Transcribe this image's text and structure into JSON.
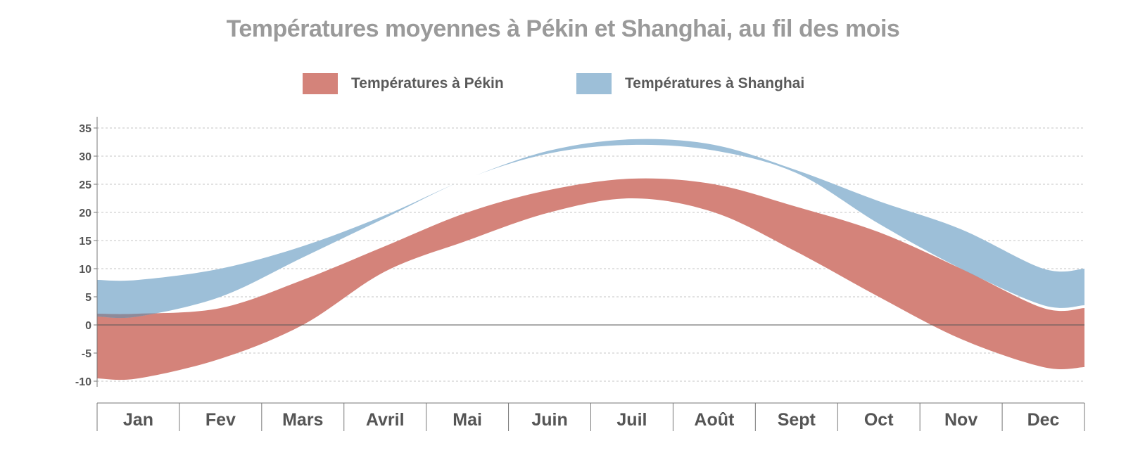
{
  "title": "Températures moyennes à Pékin et Shanghai, au fil des mois",
  "colors": {
    "pekin": "#d4837a",
    "shanghai": "#9dbfd8",
    "overlap": "#8f8a99",
    "grid": "#c4c4c4",
    "axis": "#777777",
    "zero_line": "#555555"
  },
  "chart_data": {
    "type": "area",
    "title": "Températures moyennes à Pékin et Shanghai, au fil des mois",
    "categories": [
      "Jan",
      "Fev",
      "Mars",
      "Avril",
      "Mai",
      "Juin",
      "Juil",
      "Août",
      "Sept",
      "Oct",
      "Nov",
      "Dec"
    ],
    "ylim": [
      -10,
      36
    ],
    "yticks": [
      35,
      30,
      25,
      20,
      15,
      10,
      5,
      0,
      -5,
      -10
    ],
    "grid": true,
    "legend_position": "top-center",
    "series": [
      {
        "name": "Températures à Pékin",
        "color": "#d4837a",
        "low": [
          -9.5,
          -6,
          0,
          9.5,
          15,
          20,
          22.5,
          20,
          13,
          5,
          -2.5,
          -7.5
        ],
        "high": [
          2,
          3,
          8,
          14,
          20,
          24,
          26,
          25,
          21,
          16.5,
          10,
          3
        ]
      },
      {
        "name": "Températures à Shanghai",
        "color": "#9dbfd8",
        "low": [
          1.5,
          5,
          12,
          19,
          26,
          30.5,
          32,
          31,
          27,
          18,
          10,
          3.5
        ],
        "high": [
          8,
          10,
          14,
          19.5,
          26,
          31,
          33,
          32,
          27.5,
          22,
          17,
          10
        ]
      }
    ]
  }
}
